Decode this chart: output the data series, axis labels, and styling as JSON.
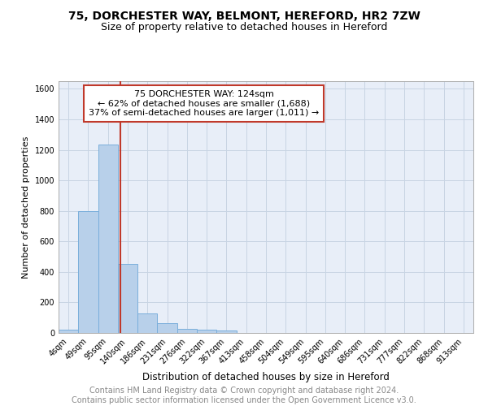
{
  "title1": "75, DORCHESTER WAY, BELMONT, HEREFORD, HR2 7ZW",
  "title2": "Size of property relative to detached houses in Hereford",
  "xlabel": "Distribution of detached houses by size in Hereford",
  "ylabel": "Number of detached properties",
  "categories": [
    "4sqm",
    "49sqm",
    "95sqm",
    "140sqm",
    "186sqm",
    "231sqm",
    "276sqm",
    "322sqm",
    "367sqm",
    "413sqm",
    "458sqm",
    "504sqm",
    "549sqm",
    "595sqm",
    "640sqm",
    "686sqm",
    "731sqm",
    "777sqm",
    "822sqm",
    "868sqm",
    "913sqm"
  ],
  "values": [
    22,
    800,
    1235,
    450,
    130,
    65,
    25,
    20,
    15,
    0,
    0,
    0,
    0,
    0,
    0,
    0,
    0,
    0,
    0,
    0,
    0
  ],
  "bar_color": "#b8d0ea",
  "bar_edge_color": "#7aaedb",
  "property_line_color": "#c0392b",
  "annotation_line1": "75 DORCHESTER WAY: 124sqm",
  "annotation_line2": "← 62% of detached houses are smaller (1,688)",
  "annotation_line3": "37% of semi-detached houses are larger (1,011) →",
  "annotation_box_color": "#ffffff",
  "annotation_box_edge_color": "#c0392b",
  "ylim": [
    0,
    1650
  ],
  "yticks": [
    0,
    200,
    400,
    600,
    800,
    1000,
    1200,
    1400,
    1600
  ],
  "grid_color": "#c8d4e3",
  "bg_color": "#e8eef8",
  "footnote": "Contains HM Land Registry data © Crown copyright and database right 2024.\nContains public sector information licensed under the Open Government Licence v3.0.",
  "title1_fontsize": 10,
  "title2_fontsize": 9,
  "xlabel_fontsize": 8.5,
  "ylabel_fontsize": 8,
  "tick_fontsize": 7,
  "annotation_fontsize": 8,
  "footnote_fontsize": 7
}
